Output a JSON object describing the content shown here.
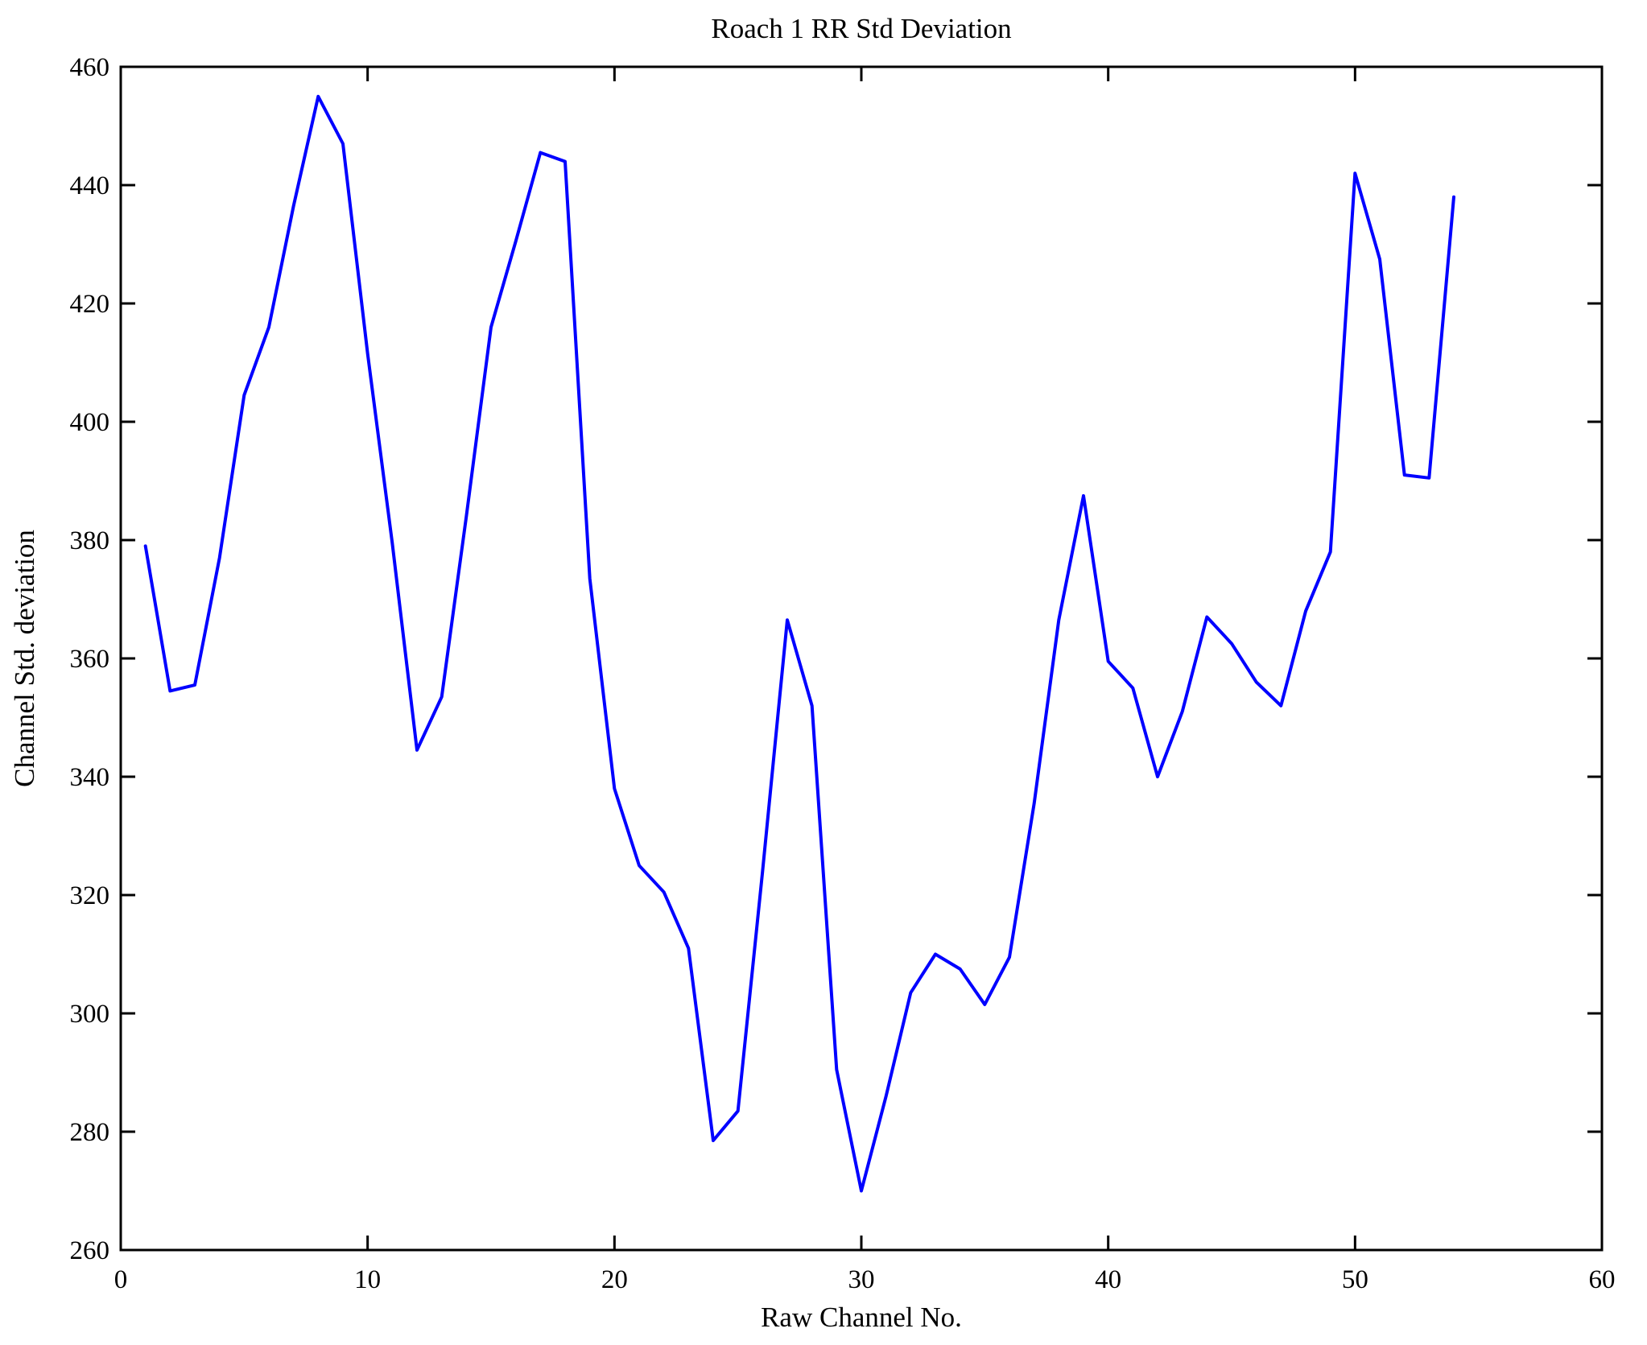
{
  "page": {
    "background": "#ffffff"
  },
  "chart_data": {
    "type": "line",
    "title": "Roach 1 RR Std Deviation",
    "xlabel": "Raw Channel No.",
    "ylabel": "Channel Std. deviation",
    "xlim": [
      0,
      60
    ],
    "ylim": [
      260,
      460
    ],
    "xticks": [
      0,
      10,
      20,
      30,
      40,
      50,
      60
    ],
    "yticks": [
      260,
      280,
      300,
      320,
      340,
      360,
      380,
      400,
      420,
      440,
      460
    ],
    "grid": false,
    "legend": null,
    "box": true,
    "line_color": "#0000FF",
    "axis_color": "#000000",
    "background_color": "#ffffff",
    "x": [
      1,
      2,
      3,
      4,
      5,
      6,
      7,
      8,
      9,
      10,
      11,
      12,
      13,
      14,
      15,
      16,
      17,
      18,
      19,
      20,
      21,
      22,
      23,
      24,
      25,
      26,
      27,
      28,
      29,
      30,
      31,
      32,
      33,
      34,
      35,
      36,
      37,
      38,
      39,
      40,
      41,
      42,
      43,
      44,
      45,
      46,
      47,
      48,
      49,
      50,
      51,
      52,
      53,
      54
    ],
    "y": [
      379,
      354.5,
      355.5,
      377,
      404.5,
      416,
      436.5,
      455,
      447,
      411.5,
      379.5,
      344.5,
      353.5,
      384,
      416,
      430.5,
      445.5,
      444,
      373.5,
      338,
      325,
      320.5,
      311,
      278.5,
      283.5,
      324,
      366.5,
      352,
      290.5,
      270,
      286,
      303.5,
      310,
      307.5,
      301.5,
      309.5,
      335.5,
      366.5,
      387.5,
      359.5,
      355,
      340,
      351,
      367,
      362.5,
      356,
      352,
      368,
      378,
      442,
      427.5,
      391,
      390.5,
      438
    ]
  }
}
